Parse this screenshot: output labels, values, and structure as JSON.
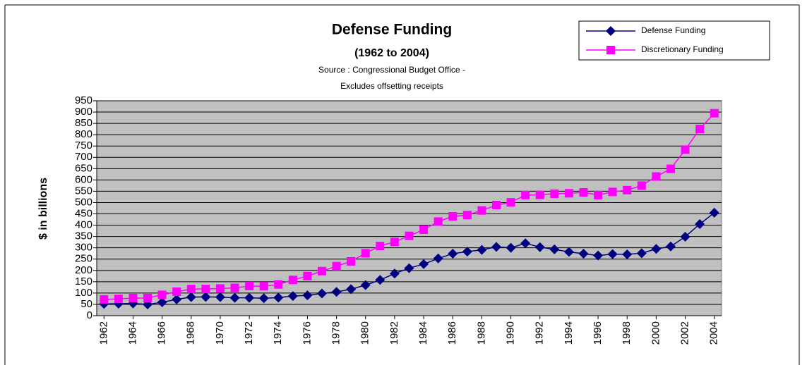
{
  "chart_data": {
    "type": "line",
    "title": "Defense Funding",
    "subtitle": "(1962 to 2004)",
    "annotations": [
      "Source : Congressional Budget Office -",
      "Excludes offsetting receipts"
    ],
    "y_label": "$ in billions",
    "x": [
      1962,
      1963,
      1964,
      1965,
      1966,
      1967,
      1968,
      1969,
      1970,
      1971,
      1972,
      1973,
      1974,
      1975,
      1976,
      1977,
      1978,
      1979,
      1980,
      1981,
      1982,
      1983,
      1984,
      1985,
      1986,
      1987,
      1988,
      1989,
      1990,
      1991,
      1992,
      1993,
      1994,
      1995,
      1996,
      1997,
      1998,
      1999,
      2000,
      2001,
      2002,
      2003,
      2004
    ],
    "series": [
      {
        "name": "Defense Funding",
        "color": "#000080",
        "marker": "diamond",
        "values": [
          52,
          53,
          54,
          50,
          59,
          72,
          82,
          83,
          82,
          79,
          79,
          77,
          80,
          87,
          90,
          98,
          105,
          117,
          135,
          158,
          186,
          210,
          228,
          253,
          274,
          283,
          291,
          304,
          300,
          320,
          303,
          293,
          282,
          274,
          266,
          272,
          271,
          276,
          295,
          306,
          349,
          405,
          455
        ]
      },
      {
        "name": "Discretionary Funding",
        "color": "#ff00ff",
        "marker": "square",
        "values": [
          72,
          74,
          78,
          78,
          92,
          106,
          118,
          118,
          120,
          123,
          131,
          130,
          138,
          158,
          175,
          197,
          219,
          240,
          276,
          308,
          326,
          353,
          380,
          416,
          439,
          445,
          465,
          489,
          501,
          533,
          534,
          539,
          541,
          545,
          533,
          547,
          555,
          575,
          615,
          649,
          734,
          825,
          895
        ]
      }
    ],
    "xlim": [
      1961.5,
      2004.5
    ],
    "xticks": [
      1962,
      1964,
      1966,
      1968,
      1970,
      1972,
      1974,
      1976,
      1978,
      1980,
      1982,
      1984,
      1986,
      1988,
      1990,
      1992,
      1994,
      1996,
      1998,
      2000,
      2002,
      2004
    ],
    "ylim": [
      0,
      950
    ],
    "yticks": [
      0,
      50,
      100,
      150,
      200,
      250,
      300,
      350,
      400,
      450,
      500,
      550,
      600,
      650,
      700,
      750,
      800,
      850,
      900,
      950
    ],
    "grid": true,
    "legend": "top-right",
    "plot_background": "#c0c0c0"
  }
}
